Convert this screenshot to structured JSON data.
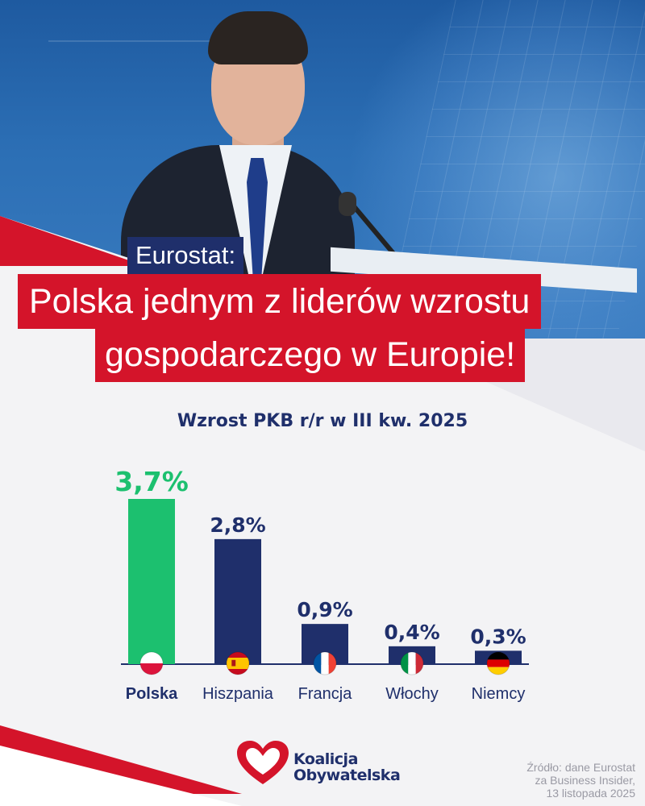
{
  "headline": {
    "kicker": "Eurostat:",
    "line1": "Polska jednym z liderów wzrostu",
    "line2": "gospodarczego w Europie!"
  },
  "chart_data": {
    "type": "bar",
    "title": "Wzrost PKB r/r w III kw. 2025",
    "categories": [
      "Polska",
      "Hiszpania",
      "Francja",
      "Włochy",
      "Niemcy"
    ],
    "values": [
      3.7,
      2.8,
      0.9,
      0.4,
      0.3
    ],
    "value_labels": [
      "3,7%",
      "2,8%",
      "0,9%",
      "0,4%",
      "0,3%"
    ],
    "flags": [
      "flag-poland-icon",
      "flag-spain-icon",
      "flag-france-icon",
      "flag-italy-icon",
      "flag-germany-icon"
    ],
    "highlight_index": 0,
    "ylim": [
      0,
      3.7
    ],
    "grid": false,
    "colors": {
      "highlight": "#1cc06f",
      "default": "#1f2f6b"
    }
  },
  "logo": {
    "line1": "Koalicja",
    "line2": "Obywatelska"
  },
  "source": {
    "line1": "Źródło: dane Eurostat",
    "line2": "za Business Insider,",
    "line3": "13 listopada 2025"
  },
  "colors": {
    "brand_red": "#d4142a",
    "brand_navy": "#1f2f6b"
  }
}
